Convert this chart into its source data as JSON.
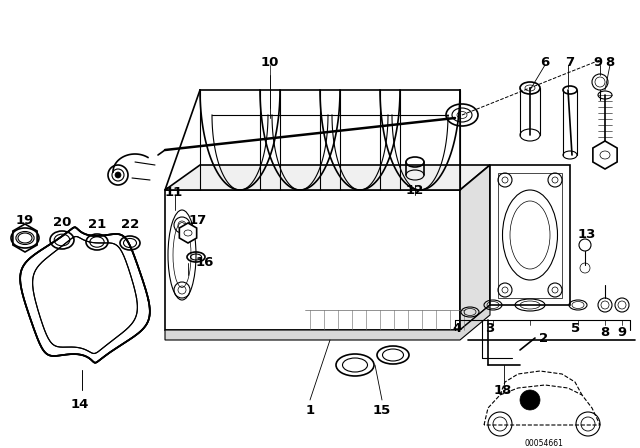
{
  "bg_color": "#ffffff",
  "line_color": "#000000",
  "figure_width": 6.4,
  "figure_height": 4.48,
  "dpi": 100,
  "diagram_code_text": "00054661"
}
